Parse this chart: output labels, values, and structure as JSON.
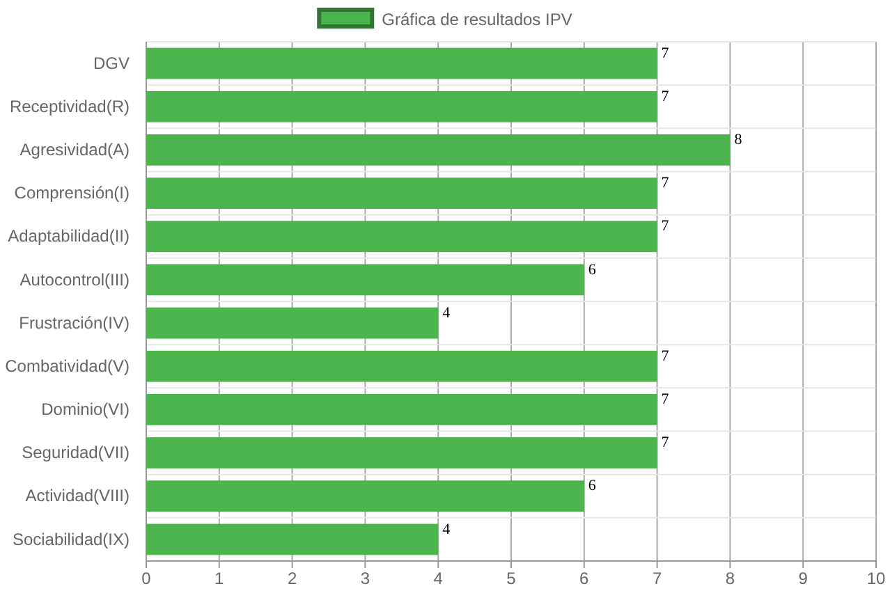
{
  "chart_data": {
    "type": "bar",
    "orientation": "horizontal",
    "categories": [
      "DGV",
      "Receptividad(R)",
      "Agresividad(A)",
      "Comprensión(I)",
      "Adaptabilidad(II)",
      "Autocontrol(III)",
      "Frustración(IV)",
      "Combatividad(V)",
      "Dominio(VI)",
      "Seguridad(VII)",
      "Actividad(VIII)",
      "Sociabilidad(IX)"
    ],
    "series": [
      {
        "name": "Gráfica de resultados IPV",
        "color": "#4cb44c",
        "values": [
          7,
          7,
          8,
          7,
          7,
          6,
          4,
          7,
          7,
          7,
          6,
          4
        ]
      }
    ],
    "xlim": [
      0,
      10
    ],
    "xticks": [
      0,
      1,
      2,
      3,
      4,
      5,
      6,
      7,
      8,
      9,
      10
    ],
    "grid": true,
    "legend": "top",
    "data_labels": true
  }
}
